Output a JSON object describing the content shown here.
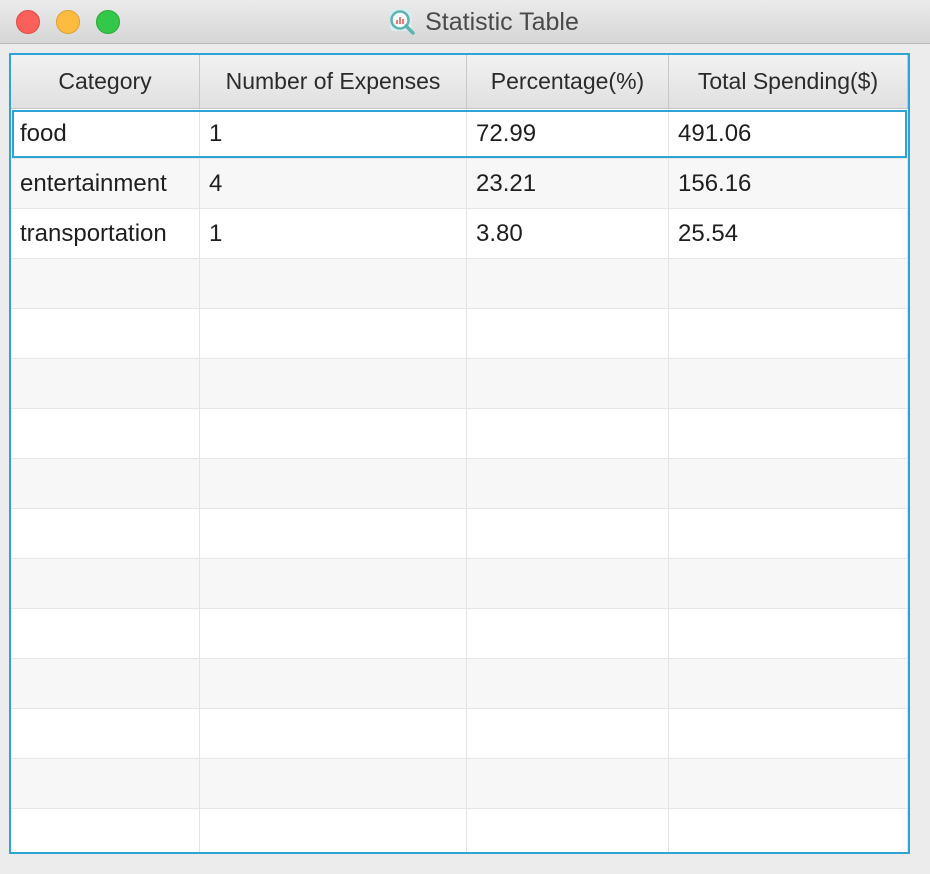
{
  "window": {
    "title": "Statistic Table",
    "title_icon": "magnifier-chart-icon"
  },
  "colors": {
    "accent": "#2fa4d4",
    "close": "#fc605b",
    "minimize": "#fdbc40",
    "zoom": "#34c84a"
  },
  "table": {
    "columns": [
      "Category",
      "Number of Expenses",
      "Percentage(%)",
      "Total Spending($)"
    ],
    "rows": [
      [
        "food",
        "1",
        "72.99",
        "491.06"
      ],
      [
        "entertainment",
        "4",
        "23.21",
        "156.16"
      ],
      [
        "transportation",
        "1",
        "3.80",
        "25.54"
      ]
    ],
    "selected_row": 0
  }
}
